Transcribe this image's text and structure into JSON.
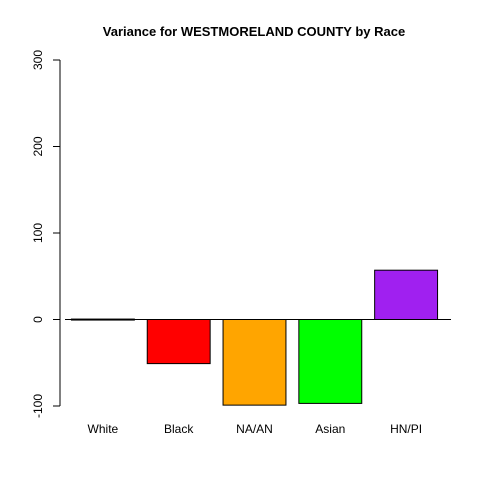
{
  "chart_data": {
    "type": "bar",
    "title": "Variance for WESTMORELAND COUNTY by Race",
    "xlabel": "",
    "ylabel": "",
    "categories": [
      "White",
      "Black",
      "NA/AN",
      "Asian",
      "HN/PI"
    ],
    "values": [
      0.5,
      -51,
      -99,
      -97,
      57
    ],
    "colors": [
      "#ffffff",
      "#ff0000",
      "#ffa500",
      "#00ff00",
      "#a020f0"
    ],
    "ylim": [
      -100,
      300
    ],
    "yticks": [
      -100,
      0,
      100,
      200,
      300
    ],
    "zero_line": true,
    "grid": false,
    "legend": "none"
  }
}
